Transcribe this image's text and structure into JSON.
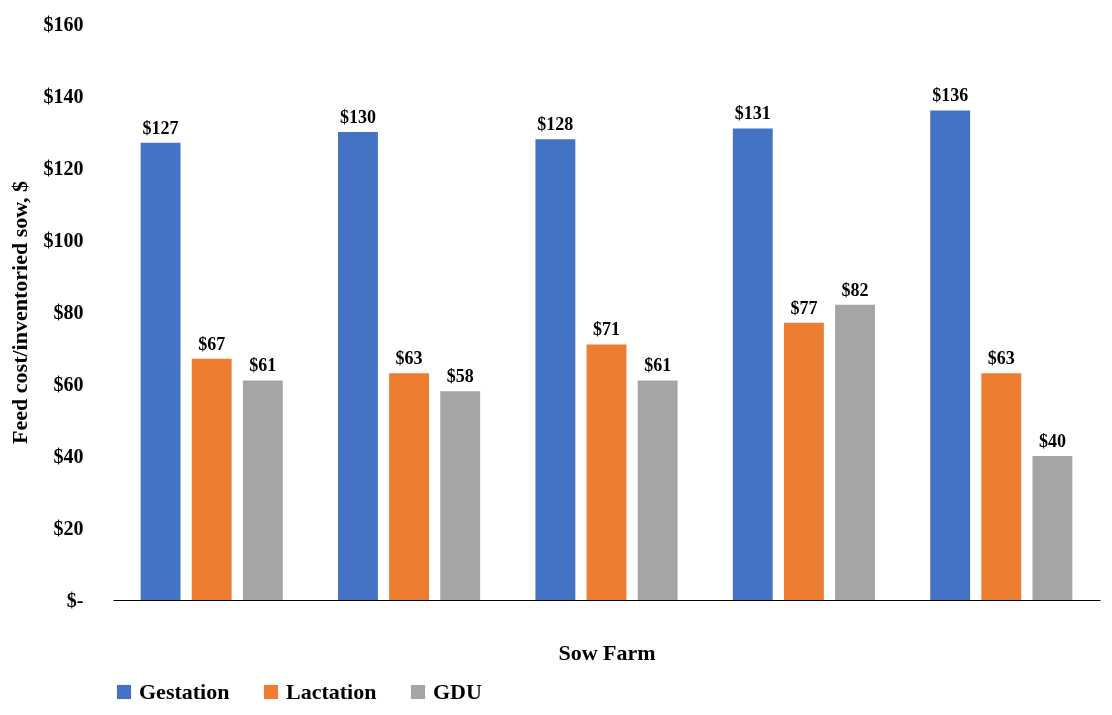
{
  "chart_data": {
    "type": "bar",
    "xlabel": "Sow Farm",
    "ylabel": "Feed cost/inventoried sow, $",
    "categories": [
      null,
      null,
      null,
      null,
      null
    ],
    "series": [
      {
        "name": "Gestation",
        "color": "#4472c4",
        "values": [
          127,
          130,
          128,
          131,
          136
        ],
        "value_labels": [
          "$127",
          "$130",
          "$128",
          "$131",
          "$136"
        ]
      },
      {
        "name": "Lactation",
        "color": "#ed7d31",
        "values": [
          67,
          63,
          71,
          77,
          63
        ],
        "value_labels": [
          "$67",
          "$63",
          "$71",
          "$77",
          "$63"
        ]
      },
      {
        "name": "GDU",
        "color": "#a5a5a5",
        "values": [
          61,
          58,
          61,
          82,
          40
        ],
        "value_labels": [
          "$61",
          "$58",
          "$61",
          "$82",
          "$40"
        ]
      }
    ],
    "ylim": [
      0,
      160
    ],
    "yticks": [
      {
        "value": 0,
        "label": "$-"
      },
      {
        "value": 20,
        "label": "$20"
      },
      {
        "value": 40,
        "label": "$40"
      },
      {
        "value": 60,
        "label": "$60"
      },
      {
        "value": 80,
        "label": "$80"
      },
      {
        "value": 100,
        "label": "$100"
      },
      {
        "value": 120,
        "label": "$120"
      },
      {
        "value": 140,
        "label": "$140"
      },
      {
        "value": 160,
        "label": "$160"
      }
    ],
    "grid": false,
    "legend": "bottom"
  }
}
